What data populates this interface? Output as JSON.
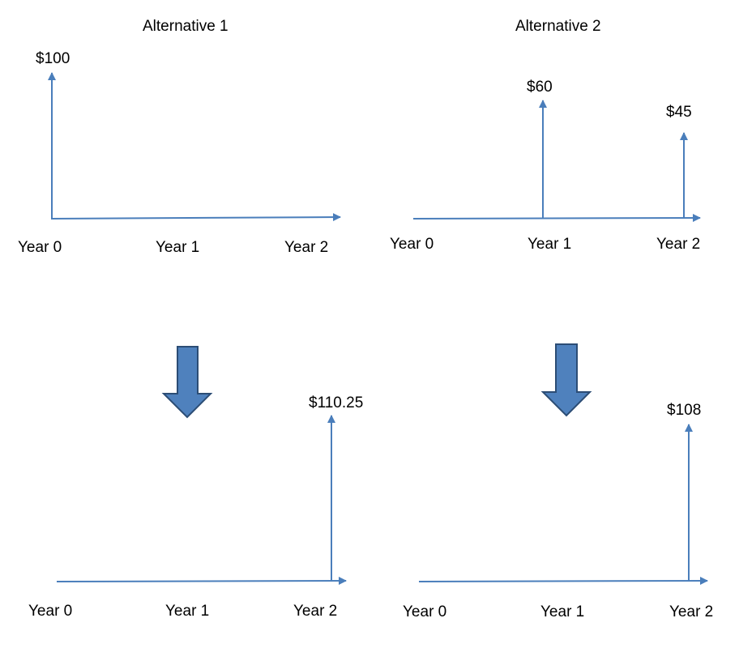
{
  "colors": {
    "line": "#4a7ebb",
    "arrow_fill": "#4f81bd",
    "arrow_stroke": "#2c4d75"
  },
  "alternative_1": {
    "title": "Alternative 1",
    "top": {
      "cash_flows": [
        {
          "year": "Year 0",
          "label": "$100"
        }
      ],
      "years": [
        "Year 0",
        "Year 1",
        "Year 2"
      ]
    },
    "bottom": {
      "cash_flows": [
        {
          "year": "Year 2",
          "label": "$110.25"
        }
      ],
      "years": [
        "Year 0",
        "Year 1",
        "Year 2"
      ]
    }
  },
  "alternative_2": {
    "title": "Alternative 2",
    "top": {
      "cash_flows": [
        {
          "year": "Year 1",
          "label": "$60"
        },
        {
          "year": "Year 2",
          "label": "$45"
        }
      ],
      "years": [
        "Year 0",
        "Year 1",
        "Year 2"
      ]
    },
    "bottom": {
      "cash_flows": [
        {
          "year": "Year 2",
          "label": "$108"
        }
      ],
      "years": [
        "Year 0",
        "Year 1",
        "Year 2"
      ]
    }
  },
  "transition_icon": "down-arrow-icon"
}
